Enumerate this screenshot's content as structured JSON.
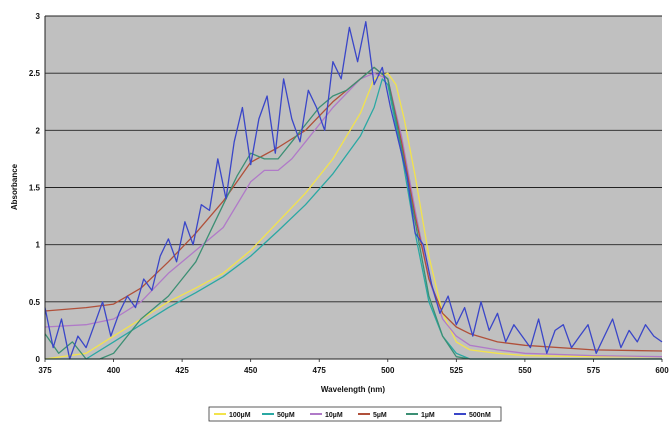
{
  "chart_data": {
    "type": "line",
    "xlabel": "Wavelength (nm)",
    "ylabel": "Absorbance",
    "xlim": [
      375,
      600
    ],
    "ylim": [
      0,
      3
    ],
    "x_ticks": [
      "375",
      "400",
      "425",
      "450",
      "475",
      "500",
      "525",
      "550",
      "575",
      "600"
    ],
    "y_ticks": [
      "0",
      "0.5",
      "1",
      "1.5",
      "2",
      "2.5",
      "3"
    ],
    "grid": "horizontal",
    "legend_position": "bottom",
    "plot_background": "#c0c0c0",
    "series": [
      {
        "name": "100µM",
        "color": "#f2e34c",
        "x": [
          375,
          390,
          400,
          410,
          420,
          430,
          440,
          450,
          460,
          470,
          480,
          490,
          495,
          500,
          503,
          506,
          510,
          515,
          520,
          525,
          530,
          540,
          550,
          575,
          600
        ],
        "y": [
          0,
          0.05,
          0.2,
          0.35,
          0.5,
          0.62,
          0.75,
          0.95,
          1.2,
          1.45,
          1.75,
          2.15,
          2.45,
          2.5,
          2.4,
          2.1,
          1.6,
          0.9,
          0.4,
          0.15,
          0.08,
          0.05,
          0.03,
          0.02,
          0.02
        ]
      },
      {
        "name": "50µM",
        "color": "#2aa8a3",
        "x": [
          375,
          390,
          400,
          410,
          420,
          430,
          440,
          450,
          460,
          470,
          480,
          490,
          495,
          498,
          500,
          505,
          510,
          515,
          520,
          525,
          530,
          540,
          550,
          575,
          600
        ],
        "y": [
          0,
          0,
          0.15,
          0.3,
          0.45,
          0.58,
          0.72,
          0.9,
          1.12,
          1.35,
          1.62,
          1.95,
          2.2,
          2.45,
          2.4,
          1.8,
          1.1,
          0.5,
          0.2,
          0.05,
          0,
          0,
          0,
          0,
          0
        ]
      },
      {
        "name": "10µM",
        "color": "#b07ac8",
        "x": [
          375,
          390,
          400,
          410,
          420,
          430,
          440,
          450,
          455,
          460,
          465,
          470,
          480,
          490,
          495,
          500,
          505,
          510,
          515,
          520,
          525,
          530,
          540,
          550,
          575,
          600
        ],
        "y": [
          0.28,
          0.3,
          0.35,
          0.5,
          0.75,
          0.95,
          1.15,
          1.55,
          1.65,
          1.65,
          1.75,
          1.9,
          2.2,
          2.45,
          2.5,
          2.45,
          1.95,
          1.3,
          0.7,
          0.35,
          0.2,
          0.12,
          0.08,
          0.05,
          0.03,
          0.02
        ]
      },
      {
        "name": "5µM",
        "color": "#b0503a",
        "x": [
          375,
          390,
          400,
          410,
          420,
          430,
          440,
          450,
          460,
          470,
          480,
          490,
          495,
          500,
          505,
          510,
          515,
          520,
          525,
          530,
          540,
          550,
          575,
          600
        ],
        "y": [
          0.42,
          0.45,
          0.48,
          0.62,
          0.85,
          1.1,
          1.38,
          1.72,
          1.85,
          2.0,
          2.25,
          2.45,
          2.55,
          2.45,
          1.9,
          1.25,
          0.7,
          0.4,
          0.28,
          0.22,
          0.15,
          0.12,
          0.08,
          0.07
        ]
      },
      {
        "name": "1µM",
        "color": "#3c8f74",
        "x": [
          375,
          380,
          385,
          390,
          395,
          400,
          405,
          410,
          415,
          420,
          425,
          430,
          435,
          440,
          445,
          450,
          455,
          460,
          465,
          470,
          475,
          480,
          485,
          490,
          495,
          500,
          505,
          510,
          515,
          520,
          525,
          530,
          540,
          550,
          575,
          600
        ],
        "y": [
          0.22,
          0.05,
          0.15,
          0,
          0,
          0.05,
          0.2,
          0.35,
          0.45,
          0.55,
          0.7,
          0.85,
          1.1,
          1.35,
          1.6,
          1.8,
          1.75,
          1.75,
          1.9,
          2.05,
          2.2,
          2.3,
          2.35,
          2.45,
          2.55,
          2.45,
          1.85,
          1.2,
          0.55,
          0.2,
          0.02,
          0,
          0,
          0,
          0,
          0
        ]
      },
      {
        "name": "500nM",
        "color": "#3a46c8",
        "x": [
          375,
          378,
          381,
          384,
          387,
          390,
          393,
          396,
          399,
          402,
          405,
          408,
          411,
          414,
          417,
          420,
          423,
          426,
          429,
          432,
          435,
          438,
          441,
          444,
          447,
          450,
          453,
          456,
          459,
          462,
          465,
          468,
          471,
          474,
          477,
          480,
          483,
          486,
          489,
          492,
          495,
          498,
          501,
          504,
          507,
          510,
          513,
          516,
          519,
          522,
          525,
          528,
          531,
          534,
          537,
          540,
          543,
          546,
          549,
          552,
          555,
          558,
          561,
          564,
          567,
          570,
          573,
          576,
          579,
          582,
          585,
          588,
          591,
          594,
          597,
          600
        ],
        "y": [
          0.45,
          0.1,
          0.35,
          0,
          0.2,
          0.1,
          0.3,
          0.5,
          0.2,
          0.4,
          0.55,
          0.45,
          0.7,
          0.6,
          0.9,
          1.05,
          0.85,
          1.2,
          1.0,
          1.35,
          1.3,
          1.75,
          1.4,
          1.9,
          2.2,
          1.7,
          2.1,
          2.3,
          1.8,
          2.45,
          2.1,
          1.9,
          2.35,
          2.2,
          2.0,
          2.6,
          2.45,
          2.9,
          2.6,
          2.95,
          2.4,
          2.55,
          2.2,
          1.9,
          1.6,
          1.1,
          1.0,
          0.65,
          0.4,
          0.55,
          0.3,
          0.45,
          0.2,
          0.5,
          0.25,
          0.4,
          0.15,
          0.3,
          0.2,
          0.1,
          0.35,
          0.05,
          0.25,
          0.3,
          0.1,
          0.2,
          0.3,
          0.05,
          0.2,
          0.35,
          0.1,
          0.25,
          0.15,
          0.3,
          0.2,
          0.15
        ]
      }
    ]
  }
}
